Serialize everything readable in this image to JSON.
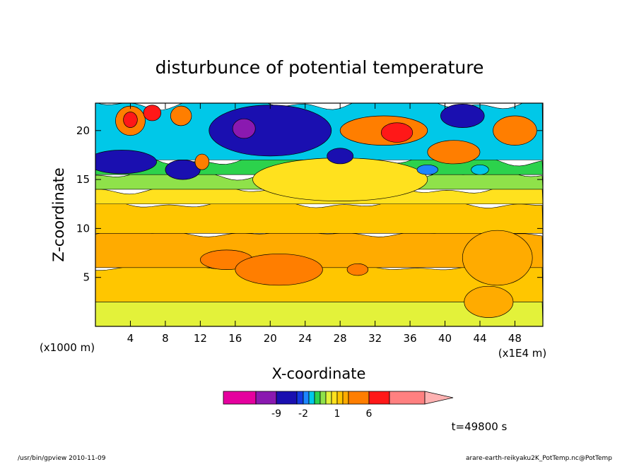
{
  "chart_data": {
    "type": "heatmap",
    "title": "disturbunce of potential temperature",
    "xlabel": "X-coordinate",
    "ylabel": "Z-coordinate",
    "y_unit_label": "(x1000 m)",
    "x_unit_label": "(x1E4 m)",
    "x_ticks": [
      4,
      8,
      12,
      16,
      20,
      24,
      28,
      32,
      36,
      40,
      44,
      48
    ],
    "y_ticks": [
      5,
      10,
      15,
      20
    ],
    "xlim": [
      0,
      51.2
    ],
    "ylim": [
      0,
      22.8
    ],
    "grid": false,
    "colorbar": {
      "colors": [
        "#e5009e",
        "#8a19b0",
        "#1a0fb0",
        "#1438e0",
        "#1e86ff",
        "#00c8e8",
        "#2cd24c",
        "#8fe24a",
        "#e3f23a",
        "#ffe11e",
        "#ffc600",
        "#ffab00",
        "#ff7e00",
        "#ff1818",
        "#ff8080",
        "#ffb2b2"
      ],
      "tick_labels": [
        "-9",
        "-2",
        "1",
        "6"
      ]
    },
    "layers": [
      {
        "z": [
          0,
          2.5
        ],
        "color": "#e3f23a"
      },
      {
        "z": [
          2.5,
          6
        ],
        "color": "#ffc600"
      },
      {
        "z": [
          6,
          9.5
        ],
        "color": "#ffab00"
      },
      {
        "z": [
          9.5,
          12.5
        ],
        "color": "#ffc600"
      },
      {
        "z": [
          12.5,
          14
        ],
        "color": "#ffe11e"
      },
      {
        "z": [
          14,
          15.5
        ],
        "color": "#8fe24a"
      },
      {
        "z": [
          15.5,
          17
        ],
        "color": "#2cd24c"
      },
      {
        "z": [
          17,
          22.8
        ],
        "color": "#00c8e8"
      }
    ],
    "features": [
      {
        "x": 15,
        "y": 6.8,
        "rx": 3,
        "ry": 1.0,
        "color": "#ff7e00"
      },
      {
        "x": 21,
        "y": 5.8,
        "rx": 5,
        "ry": 1.6,
        "color": "#ff7e00"
      },
      {
        "x": 30,
        "y": 5.8,
        "rx": 1.2,
        "ry": 0.6,
        "color": "#ff7e00"
      },
      {
        "x": 46,
        "y": 7,
        "rx": 4,
        "ry": 2.8,
        "color": "#ffab00"
      },
      {
        "x": 45,
        "y": 2.5,
        "rx": 2.8,
        "ry": 1.6,
        "color": "#ffab00"
      },
      {
        "x": 28,
        "y": 15,
        "rx": 10,
        "ry": 2.2,
        "color": "#ffe11e"
      },
      {
        "x": 20,
        "y": 20,
        "rx": 7,
        "ry": 2.6,
        "color": "#1a0fb0"
      },
      {
        "x": 17,
        "y": 20.2,
        "rx": 1.3,
        "ry": 1.0,
        "color": "#8a19b0"
      },
      {
        "x": 3,
        "y": 16.8,
        "rx": 4,
        "ry": 1.2,
        "color": "#1a0fb0"
      },
      {
        "x": 10,
        "y": 16,
        "rx": 2,
        "ry": 1.0,
        "color": "#1a0fb0"
      },
      {
        "x": 4,
        "y": 21,
        "rx": 1.7,
        "ry": 1.5,
        "color": "#ff7e00"
      },
      {
        "x": 4,
        "y": 21.1,
        "rx": 0.8,
        "ry": 0.8,
        "color": "#ff1818"
      },
      {
        "x": 6.5,
        "y": 21.8,
        "rx": 1.0,
        "ry": 0.8,
        "color": "#ff1818"
      },
      {
        "x": 9.8,
        "y": 21.5,
        "rx": 1.2,
        "ry": 1.0,
        "color": "#ff7e00"
      },
      {
        "x": 12.2,
        "y": 16.8,
        "rx": 0.8,
        "ry": 0.8,
        "color": "#ff7e00"
      },
      {
        "x": 28,
        "y": 17.4,
        "rx": 1.5,
        "ry": 0.8,
        "color": "#1a0fb0"
      },
      {
        "x": 33,
        "y": 20,
        "rx": 5,
        "ry": 1.5,
        "color": "#ff7e00"
      },
      {
        "x": 34.5,
        "y": 19.8,
        "rx": 1.8,
        "ry": 1.0,
        "color": "#ff1818"
      },
      {
        "x": 41,
        "y": 17.8,
        "rx": 3,
        "ry": 1.2,
        "color": "#ff7e00"
      },
      {
        "x": 48,
        "y": 20,
        "rx": 2.5,
        "ry": 1.5,
        "color": "#ff7e00"
      },
      {
        "x": 42,
        "y": 21.5,
        "rx": 2.5,
        "ry": 1.2,
        "color": "#1a0fb0"
      },
      {
        "x": 38,
        "y": 16.0,
        "rx": 1.2,
        "ry": 0.5,
        "color": "#1e86ff"
      },
      {
        "x": 44,
        "y": 16.0,
        "rx": 1.0,
        "ry": 0.5,
        "color": "#00c8e8"
      }
    ],
    "time_label": "t=49800 s"
  },
  "footer": {
    "left": "/usr/bin/gpview   2010-11-09",
    "right": "arare-earth-reikyaku2K_PotTemp.nc@PotTemp"
  }
}
